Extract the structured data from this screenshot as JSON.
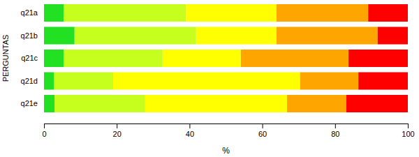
{
  "chart_data": {
    "type": "bar",
    "orientation": "horizontal",
    "stacked": true,
    "xlabel": "%",
    "ylabel": "PERGUNTAS",
    "categories": [
      "q21a",
      "q21b",
      "q21c",
      "q21d",
      "q21e"
    ],
    "series": [
      {
        "color": "#22e022",
        "values": [
          5.4,
          8.4,
          5.4,
          2.7,
          2.9
        ]
      },
      {
        "color": "#c6ff1e",
        "values": [
          33.6,
          33.4,
          27.2,
          16.3,
          24.9
        ]
      },
      {
        "color": "#ffff00",
        "values": [
          24.9,
          22.1,
          21.5,
          51.4,
          39.0
        ]
      },
      {
        "color": "#ffa500",
        "values": [
          25.2,
          27.8,
          29.6,
          16.0,
          16.3
        ]
      },
      {
        "color": "#ff0000",
        "values": [
          10.9,
          8.3,
          16.3,
          13.6,
          16.9
        ]
      }
    ],
    "xlim": [
      0,
      100
    ],
    "xticks": [
      0,
      20,
      40,
      60,
      80,
      100
    ],
    "grid": false
  }
}
